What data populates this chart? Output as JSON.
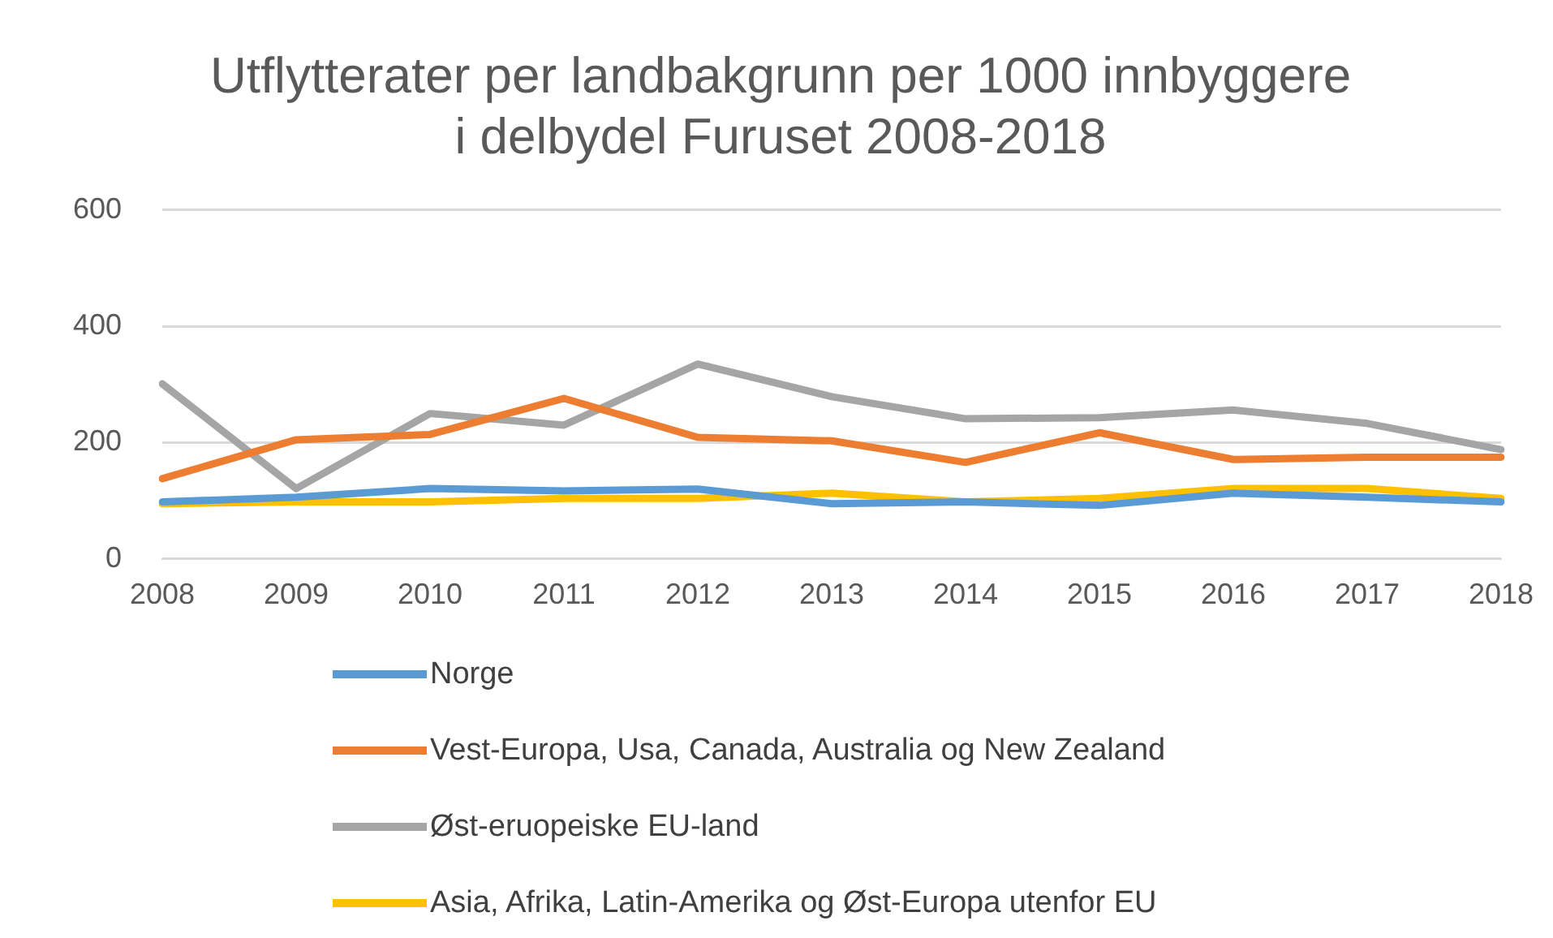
{
  "chart_data": {
    "type": "line",
    "title": "Utflytterater per landbakgrunn per 1000 innbyggere i delbydel Furuset 2008-2018",
    "categories": [
      "2008",
      "2009",
      "2010",
      "2011",
      "2012",
      "2013",
      "2014",
      "2015",
      "2016",
      "2017",
      "2018"
    ],
    "series": [
      {
        "name": "Norge",
        "color": "#5b9bd5",
        "values": [
          98,
          106,
          121,
          117,
          120,
          95,
          98,
          92,
          113,
          106,
          98
        ]
      },
      {
        "name": "Vest-Europa, Usa, Canada, Australia og New Zealand",
        "color": "#ed7d31",
        "values": [
          138,
          205,
          214,
          276,
          209,
          203,
          166,
          217,
          171,
          175,
          175
        ]
      },
      {
        "name": "Øst-eruopeiske EU-land",
        "color": "#a5a5a5",
        "values": [
          301,
          121,
          250,
          230,
          335,
          279,
          241,
          243,
          256,
          233,
          188
        ]
      },
      {
        "name": "Asia, Afrika, Latin-Amerika og Øst-Europa utenfor EU",
        "color": "#ffc000",
        "values": [
          95,
          98,
          98,
          104,
          104,
          113,
          98,
          104,
          121,
          121,
          104
        ]
      }
    ],
    "ylim": [
      0,
      600
    ],
    "yticks": [
      0,
      200,
      400,
      600
    ],
    "grid": "y",
    "legend": "bottom",
    "marker": "none",
    "line_style": "solid"
  }
}
